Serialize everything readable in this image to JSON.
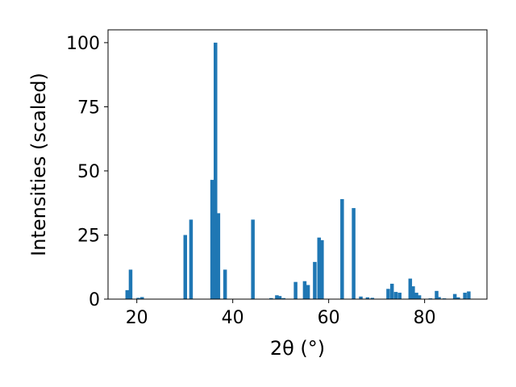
{
  "chart_data": {
    "type": "bar",
    "xlabel": "2θ (°)",
    "ylabel": "Intensities (scaled)",
    "xlim": [
      14,
      93
    ],
    "ylim": [
      0,
      105
    ],
    "xticks": [
      20,
      40,
      60,
      80
    ],
    "yticks": [
      0,
      25,
      50,
      75,
      100
    ],
    "bar_color": "#1f77b4",
    "grid": false,
    "x": [
      18.0,
      18.7,
      20.3,
      21.1,
      30.1,
      31.3,
      35.7,
      36.4,
      37.0,
      38.4,
      44.2,
      48.0,
      49.2,
      49.8,
      50.6,
      53.1,
      55.0,
      55.7,
      57.1,
      58.0,
      58.6,
      62.8,
      65.2,
      66.7,
      68.1,
      69.1,
      72.4,
      73.2,
      74.0,
      74.8,
      77.0,
      77.6,
      78.3,
      78.9,
      81.2,
      82.5,
      83.0,
      84.1,
      86.3,
      87.0,
      88.4,
      89.2
    ],
    "y": [
      3.5,
      11.5,
      0.5,
      0.8,
      25,
      31,
      46.5,
      100,
      33.5,
      11.5,
      31,
      0.4,
      1.5,
      1.2,
      0.4,
      6.7,
      7,
      5.5,
      14.5,
      24,
      23,
      39,
      35.5,
      1.0,
      0.7,
      0.5,
      4.0,
      6.0,
      2.8,
      2.5,
      8.0,
      5.0,
      2.5,
      1.5,
      0.3,
      3.2,
      0.8,
      0.3,
      2.0,
      0.7,
      2.5,
      3.0
    ]
  }
}
